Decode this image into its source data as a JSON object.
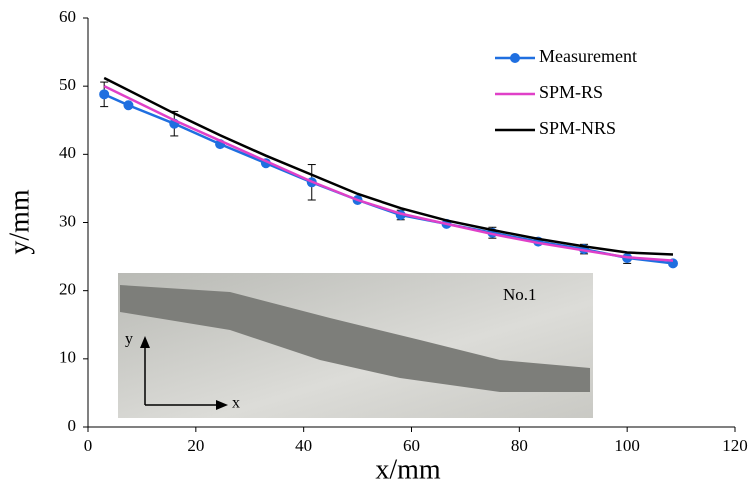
{
  "chart_data": {
    "type": "line",
    "xlabel": "x/mm",
    "ylabel": "y/mm",
    "xlim": [
      0,
      120
    ],
    "xticks": [
      0,
      20,
      40,
      60,
      80,
      100,
      120
    ],
    "ylim": [
      0,
      60
    ],
    "yticks": [
      0,
      10,
      20,
      30,
      40,
      50,
      60
    ],
    "legend": "upper right",
    "annotations": [
      "No.1",
      "y",
      "x"
    ],
    "series": [
      {
        "name": "Measurement",
        "color": "#1f6fe0",
        "markers": true,
        "x": [
          3,
          7.5,
          16,
          24.5,
          33,
          41.5,
          50,
          58,
          66.5,
          75,
          83.5,
          92,
          100,
          108.5
        ],
        "values": [
          48.8,
          47.2,
          44.5,
          41.5,
          38.7,
          35.9,
          33.3,
          31.1,
          29.8,
          28.5,
          27.2,
          26.1,
          24.8,
          24.0
        ],
        "errors": [
          1.8,
          0.3,
          1.8,
          0.3,
          0.3,
          2.6,
          0.3,
          0.7,
          0.3,
          0.8,
          0.3,
          0.7,
          0.8,
          0.3
        ]
      },
      {
        "name": "SPM-RS",
        "color": "#e040c8",
        "markers": false,
        "x": [
          3,
          16,
          24.5,
          33,
          41.5,
          50,
          58,
          66.5,
          75,
          83.5,
          92,
          100,
          108.5
        ],
        "values": [
          50.0,
          45.0,
          42.0,
          39.0,
          36.0,
          33.3,
          31.3,
          29.8,
          28.3,
          27.0,
          25.9,
          24.9,
          24.4
        ]
      },
      {
        "name": "SPM-NRS",
        "color": "#000000",
        "markers": false,
        "x": [
          3,
          16,
          24.5,
          33,
          41.5,
          50,
          58,
          66.5,
          75,
          83.5,
          92,
          100,
          108.5
        ],
        "values": [
          51.2,
          46.0,
          42.8,
          39.8,
          37.0,
          34.2,
          32.1,
          30.3,
          28.9,
          27.6,
          26.5,
          25.6,
          25.3
        ]
      }
    ]
  }
}
